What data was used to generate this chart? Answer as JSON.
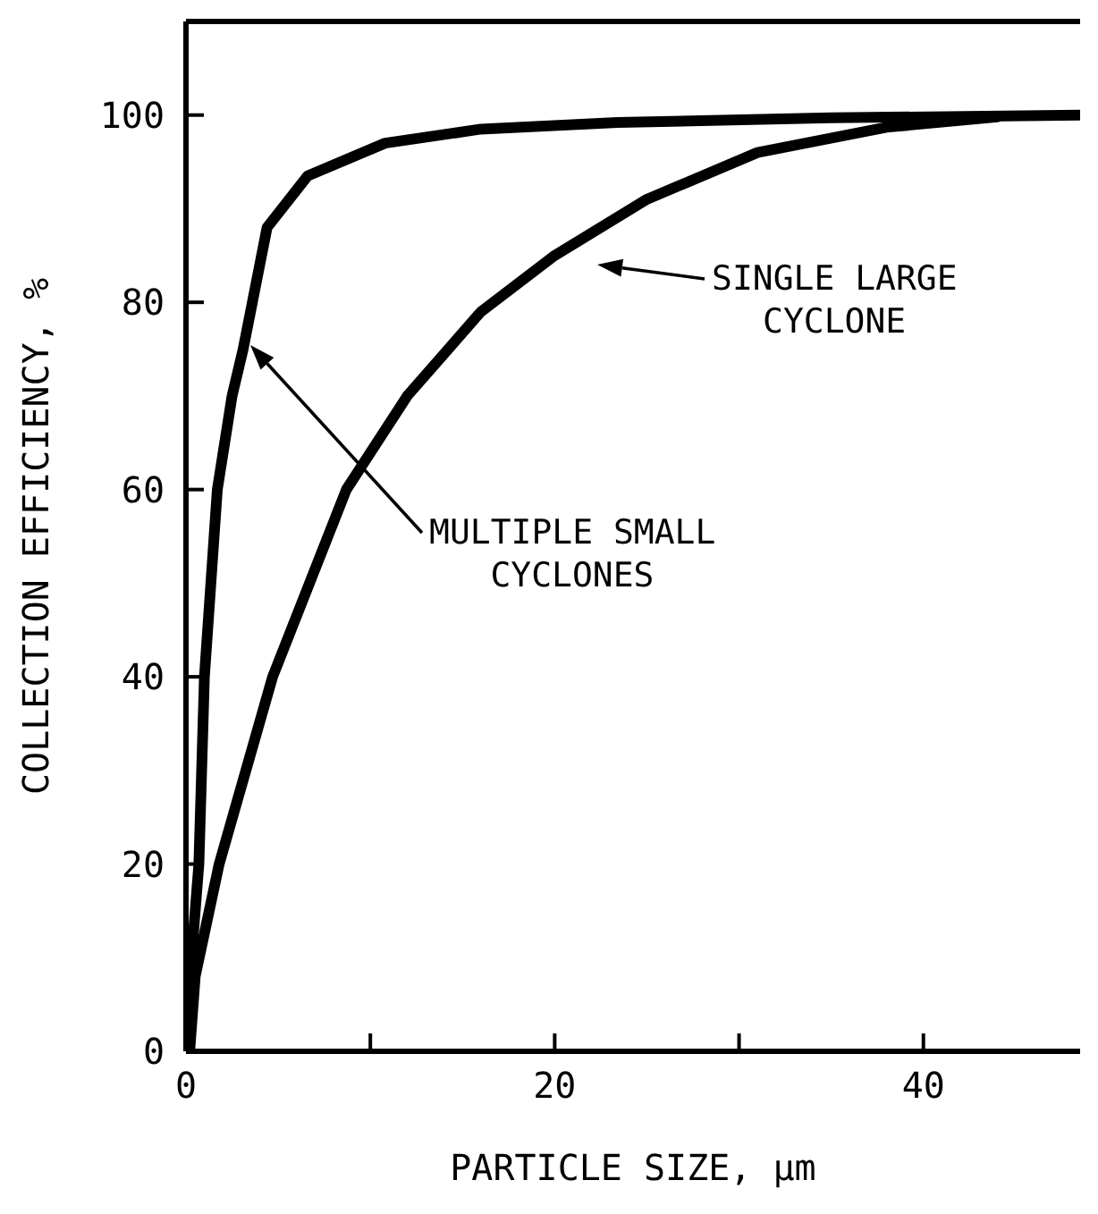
{
  "chart_data": {
    "type": "line",
    "xlabel": "PARTICLE SIZE, µm",
    "ylabel": "COLLECTION EFFICIENCY, %",
    "xlim": [
      0,
      48.5
    ],
    "ylim": [
      0,
      110
    ],
    "xticks": [
      0,
      {
        "value": 10,
        "label": null
      },
      20,
      {
        "value": 30,
        "label": null
      },
      40
    ],
    "yticks": [
      0,
      20,
      40,
      60,
      80,
      100
    ],
    "marker": "none",
    "line_style": "solid",
    "series": [
      {
        "color": "#000000",
        "x": [
          0,
          0.3,
          0.7,
          1,
          1.7,
          2.5,
          3.1,
          4.4,
          6.6,
          10.8,
          16,
          23.4,
          35,
          48.5
        ],
        "values": [
          0,
          10,
          20,
          40,
          60,
          70,
          75,
          88,
          93.5,
          97,
          98.5,
          99.2,
          99.7,
          100
        ]
      },
      {
        "color": "#000000",
        "x": [
          0.2,
          0.5,
          1.8,
          4.7,
          8.7,
          12,
          16,
          20,
          25,
          31,
          38,
          44
        ],
        "values": [
          0,
          8,
          20,
          40,
          60,
          70,
          79,
          85,
          91,
          96,
          98.7,
          99.8
        ]
      }
    ],
    "annotations": [
      "MULTIPLE SMALL\nCYCLONES",
      "SINGLE LARGE\nCYCLONE"
    ]
  }
}
